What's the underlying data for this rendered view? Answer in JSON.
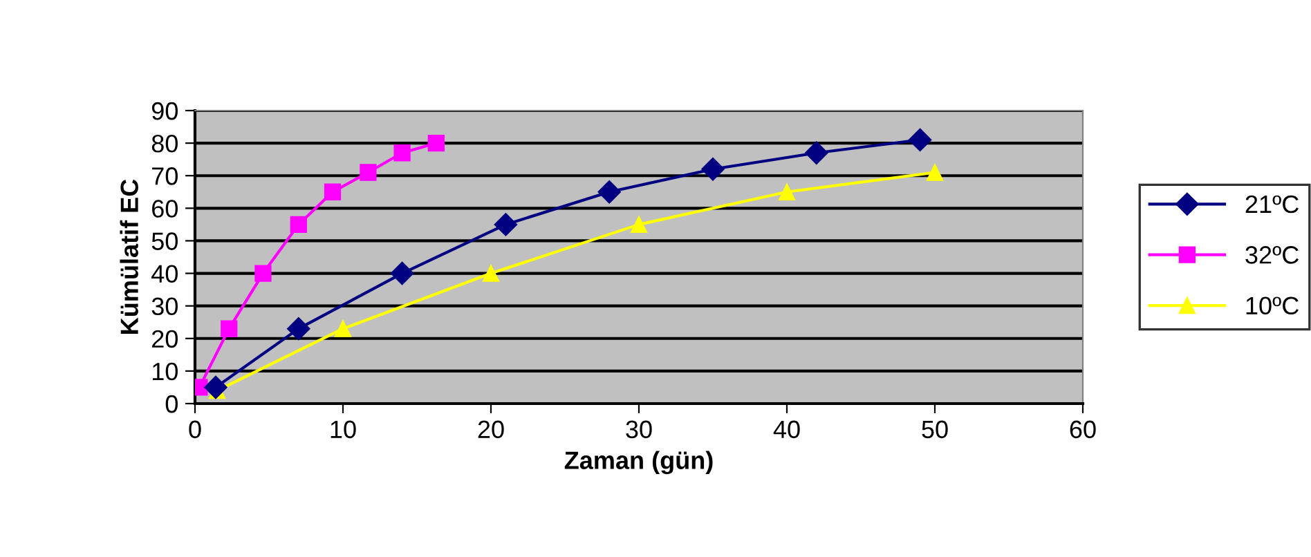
{
  "chart_data": {
    "type": "line",
    "xlabel": "Zaman (gün)",
    "ylabel": "Kümülatif EC",
    "xlim": [
      0,
      60
    ],
    "xticks": [
      0,
      10,
      20,
      30,
      40,
      50,
      60
    ],
    "ylim": [
      0,
      90
    ],
    "yticks": [
      0,
      10,
      20,
      30,
      40,
      50,
      60,
      70,
      80,
      90
    ],
    "grid": "y",
    "legend": "right",
    "series": [
      {
        "name": "21ºC",
        "color": "#000080",
        "marker": "diamond",
        "x": [
          1.4,
          7,
          14,
          21,
          28,
          35,
          42,
          49
        ],
        "values": [
          5,
          23,
          40,
          55,
          65,
          72,
          77,
          81
        ]
      },
      {
        "name": "32ºC",
        "color": "#ff00ff",
        "marker": "square",
        "x": [
          0.3,
          2.3,
          4.6,
          7,
          9.3,
          11.7,
          14,
          16.3
        ],
        "values": [
          5,
          23,
          40,
          55,
          65,
          71,
          77,
          80
        ]
      },
      {
        "name": "10ºC",
        "color": "#ffff00",
        "marker": "triangle",
        "x": [
          1.5,
          10,
          20,
          30,
          40,
          50
        ],
        "values": [
          4,
          23,
          40,
          55,
          65,
          71
        ]
      }
    ]
  }
}
